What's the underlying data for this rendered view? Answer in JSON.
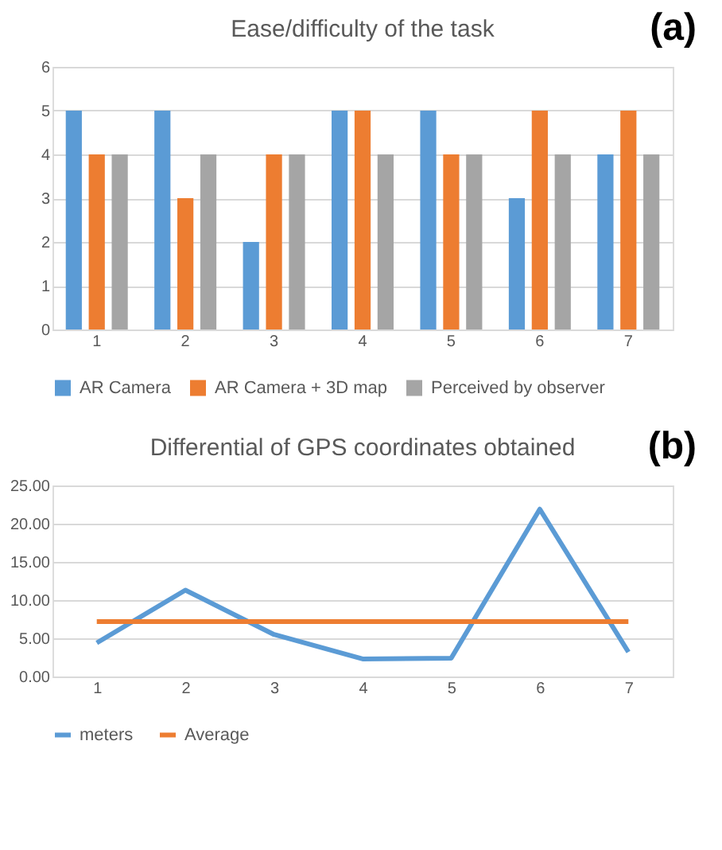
{
  "chart_data": [
    {
      "type": "bar",
      "title": "Ease/difficulty of the task",
      "annotations": [
        "(a)"
      ],
      "categories": [
        "1",
        "2",
        "3",
        "4",
        "5",
        "6",
        "7"
      ],
      "series": [
        {
          "name": "AR Camera",
          "color": "#5b9bd5",
          "values": [
            5,
            5,
            2,
            5,
            5,
            3,
            4
          ]
        },
        {
          "name": "AR Camera + 3D map",
          "color": "#ed7d31",
          "values": [
            4,
            3,
            4,
            5,
            4,
            5,
            5
          ]
        },
        {
          "name": "Perceived by observer",
          "color": "#a5a5a5",
          "values": [
            4,
            4,
            4,
            4,
            4,
            4,
            4
          ]
        }
      ],
      "ylim": [
        0,
        6
      ],
      "yticks": [
        0,
        1,
        2,
        3,
        4,
        5,
        6
      ],
      "grid": "y",
      "legend": "bottom"
    },
    {
      "type": "line",
      "title": "Differential of GPS coordinates obtained",
      "annotations": [
        "(b)"
      ],
      "categories": [
        "1",
        "2",
        "3",
        "4",
        "5",
        "6",
        "7"
      ],
      "series": [
        {
          "name": "meters",
          "color": "#5b9bd5",
          "values": [
            4.4,
            11.3,
            5.5,
            2.3,
            2.4,
            21.9,
            3.2
          ]
        },
        {
          "name": "Average",
          "color": "#ed7d31",
          "values": [
            7.2,
            7.2,
            7.2,
            7.2,
            7.2,
            7.2,
            7.2
          ]
        }
      ],
      "ylim": [
        0,
        25
      ],
      "yticks": [
        {
          "value": 0,
          "label": "0.00"
        },
        {
          "value": 5,
          "label": "5.00"
        },
        {
          "value": 10,
          "label": "10.00"
        },
        {
          "value": 15,
          "label": "15.00"
        },
        {
          "value": 20,
          "label": "20.00"
        },
        {
          "value": 25,
          "label": "25.00"
        }
      ],
      "grid": "y",
      "legend": "bottom",
      "marker": "none",
      "line_style": "solid"
    }
  ]
}
